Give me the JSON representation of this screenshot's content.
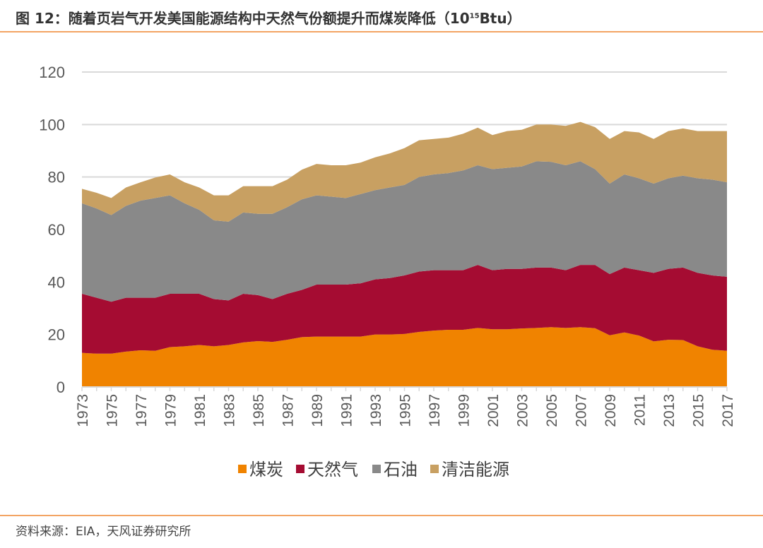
{
  "header": {
    "title_prefix": "图 12：随着页岩气开发美国能源结构中天然气份额提升而煤炭降低（10",
    "title_sup": "15",
    "title_suffix": "Btu）"
  },
  "footer": {
    "source": "资料来源：EIA，天风证券研究所"
  },
  "chart_data": {
    "type": "area",
    "stacked": true,
    "title": "",
    "xlabel": "",
    "ylabel": "",
    "ylim": [
      0,
      120
    ],
    "yticks": [
      0,
      20,
      40,
      60,
      80,
      100,
      120
    ],
    "grid": true,
    "legend": "bottom",
    "x": [
      1973,
      1974,
      1975,
      1976,
      1977,
      1978,
      1979,
      1980,
      1981,
      1982,
      1983,
      1984,
      1985,
      1986,
      1987,
      1988,
      1989,
      1990,
      1991,
      1992,
      1993,
      1994,
      1995,
      1996,
      1997,
      1998,
      1999,
      2000,
      2001,
      2002,
      2003,
      2004,
      2005,
      2006,
      2007,
      2008,
      2009,
      2010,
      2011,
      2012,
      2013,
      2014,
      2015,
      2016,
      2017
    ],
    "xtick_labels": [
      "1973",
      "1975",
      "1977",
      "1979",
      "1981",
      "1983",
      "1985",
      "1987",
      "1989",
      "1991",
      "1993",
      "1995",
      "1997",
      "1999",
      "2001",
      "2003",
      "2005",
      "2007",
      "2009",
      "2011",
      "2013",
      "2015",
      "2017"
    ],
    "series": [
      {
        "name": "煤炭",
        "color": "#F08300",
        "values": [
          13,
          12.7,
          12.7,
          13.5,
          14,
          13.8,
          15.2,
          15.5,
          16,
          15.5,
          16,
          17,
          17.5,
          17.2,
          18,
          19,
          19.2,
          19.2,
          19.2,
          19.2,
          20,
          20,
          20.2,
          21,
          21.5,
          21.8,
          21.8,
          22.5,
          22,
          22,
          22.3,
          22.5,
          22.8,
          22.5,
          22.8,
          22.4,
          19.7,
          20.8,
          19.6,
          17.4,
          18,
          17.9,
          15.5,
          14.2,
          13.8
        ]
      },
      {
        "name": "天然气",
        "color": "#A50C32",
        "values": [
          22.5,
          21.3,
          19.8,
          20.5,
          20,
          20.2,
          20.3,
          20,
          19.5,
          18,
          17,
          18.5,
          17.5,
          16.3,
          17.5,
          18,
          19.8,
          19.8,
          19.8,
          20.3,
          21,
          21.5,
          22.3,
          23,
          23,
          22.7,
          22.7,
          24,
          22.5,
          23,
          22.7,
          23,
          22.7,
          22,
          23.7,
          24.1,
          23.3,
          24.7,
          24.9,
          26.1,
          27,
          27.6,
          28,
          28.3,
          28.2
        ]
      },
      {
        "name": "石油",
        "color": "#898989",
        "values": [
          34.5,
          34,
          33,
          35,
          37,
          38,
          37.5,
          34.5,
          32,
          30,
          30,
          31,
          31,
          32.5,
          33,
          34.5,
          34,
          33.5,
          33,
          34,
          34,
          34.5,
          34.5,
          36,
          36.5,
          37,
          38,
          38,
          38.5,
          38.5,
          39,
          40.5,
          40.3,
          40,
          39.5,
          36.5,
          34.5,
          35.5,
          35,
          34,
          34.5,
          35,
          36,
          36.5,
          36
        ]
      },
      {
        "name": "清洁能源",
        "color": "#C8A062",
        "values": [
          5.5,
          6,
          6.5,
          7,
          7,
          7.8,
          8,
          8,
          8.5,
          9.5,
          10,
          10,
          10.5,
          10.5,
          10.5,
          11.3,
          12,
          12,
          12.5,
          12,
          12.5,
          13,
          14,
          14,
          13.5,
          13.5,
          14,
          14.3,
          13,
          14,
          14,
          14,
          14.2,
          15,
          15,
          16,
          17,
          16.5,
          17.5,
          17,
          18,
          18,
          18,
          18.5,
          19.5
        ]
      }
    ]
  }
}
